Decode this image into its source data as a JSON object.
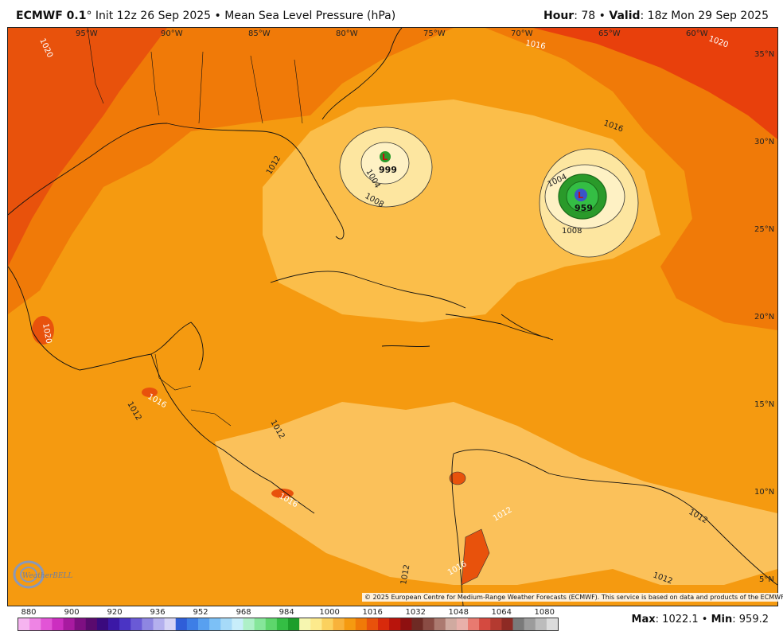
{
  "header": {
    "model": "ECMWF 0.1",
    "degree_symbol": "°",
    "init": "Init 12z 26 Sep 2025",
    "sep": "•",
    "field": "Mean Sea Level Pressure (hPa)",
    "hour_label": "Hour",
    "hour_value": ": 78",
    "valid_label": "Valid",
    "valid_value": ": 18z Mon 29 Sep 2025"
  },
  "map": {
    "lon_labels": [
      "95°W",
      "90°W",
      "85°W",
      "80°W",
      "75°W",
      "70°W",
      "65°W",
      "60°W"
    ],
    "lat_labels": [
      "35°N",
      "30°N",
      "25°N",
      "20°N",
      "15°N",
      "10°N",
      "5°N"
    ],
    "contour_labels": [
      "1020",
      "1016",
      "1012",
      "1008",
      "1004",
      "1020",
      "1016",
      "1012",
      "1008",
      "1004",
      "1016",
      "1012",
      "1012",
      "1016",
      "1020",
      "1012",
      "1016"
    ],
    "lows": [
      {
        "symbol": "L",
        "pressure": "999"
      },
      {
        "symbol": "L",
        "pressure": "959"
      }
    ],
    "colors": {
      "p1020": "#e8400c",
      "p1016": "#f07a08",
      "p1012": "#f59a10",
      "p1008": "#fbbe4a",
      "p1004": "#fde6a0",
      "low_green": "#2a9a2a",
      "low_blue": "#3a55c8"
    }
  },
  "colorbar": {
    "labels": [
      "880",
      "900",
      "920",
      "936",
      "952",
      "968",
      "984",
      "1000",
      "1016",
      "1032",
      "1048",
      "1064",
      "1080"
    ],
    "colors": [
      "#f6b4f0",
      "#ee84e4",
      "#e254d6",
      "#cc2ec0",
      "#a81aa0",
      "#7e0f82",
      "#5a0a6e",
      "#3a0a7e",
      "#3b18a6",
      "#4a34c4",
      "#6a5ad6",
      "#8e86e2",
      "#b4b0ee",
      "#d6d4f6",
      "#2f5ed8",
      "#3d7ee6",
      "#58a0f0",
      "#7cc0f6",
      "#a6daf8",
      "#c8eefa",
      "#aef0c8",
      "#86e69a",
      "#5ed66c",
      "#34be44",
      "#1c9e2a",
      "#f6f6b0",
      "#fdea8c",
      "#fbd15e",
      "#f8b23a",
      "#f59a10",
      "#f07a08",
      "#e8520c",
      "#d82a0c",
      "#b8140c",
      "#8e1010",
      "#6e2a24",
      "#8a4c44",
      "#ac7a70",
      "#d0aaa0",
      "#e8b0aa",
      "#e87a70",
      "#d44a40",
      "#b43a30",
      "#8e2a24",
      "#7a7a7a",
      "#9c9c9c",
      "#bcbcbc",
      "#dcdcdc"
    ]
  },
  "footer": {
    "max_label": "Max",
    "max_value": ": 1022.1",
    "sep": "•",
    "min_label": "Min",
    "min_value": ": 959.2",
    "copyright": "© 2025 European Centre for Medium-Range Weather Forecasts (ECMWF). This service is based on data and products of the ECMWF.",
    "logo_text": "WeatherBELL"
  }
}
